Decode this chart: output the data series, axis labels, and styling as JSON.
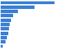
{
  "values": [
    80,
    50,
    25,
    18,
    15,
    13,
    12,
    11,
    9,
    7,
    3
  ],
  "bar_color": "#3a7fd5",
  "background_color": "#ffffff",
  "xlim": [
    0,
    100
  ],
  "grid_color": "#e0e0e0"
}
